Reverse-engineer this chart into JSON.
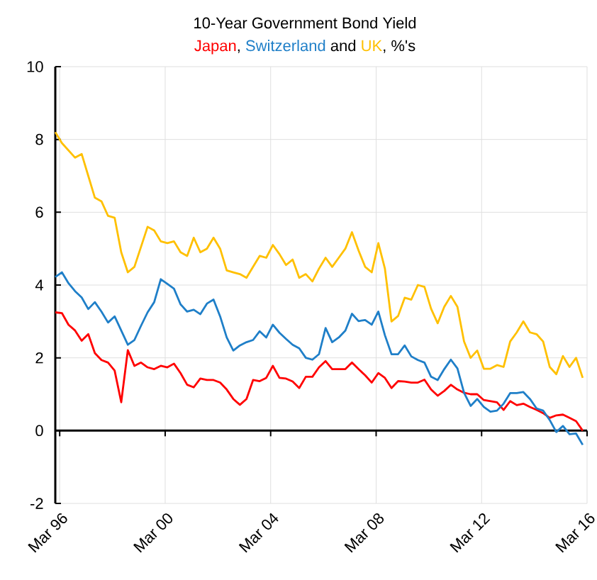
{
  "chart_data": {
    "type": "line",
    "title": "10-Year Government Bond Yield",
    "annotations": [
      ",",
      "and",
      ", %'s"
    ],
    "x": [
      "1996-01",
      "1996-04",
      "1996-07",
      "1996-10",
      "1997-01",
      "1997-04",
      "1997-07",
      "1997-10",
      "1998-01",
      "1998-04",
      "1998-07",
      "1998-10",
      "1999-01",
      "1999-04",
      "1999-07",
      "1999-10",
      "2000-01",
      "2000-04",
      "2000-07",
      "2000-10",
      "2001-01",
      "2001-04",
      "2001-07",
      "2001-10",
      "2002-01",
      "2002-04",
      "2002-07",
      "2002-10",
      "2003-01",
      "2003-04",
      "2003-07",
      "2003-10",
      "2004-01",
      "2004-04",
      "2004-07",
      "2004-10",
      "2005-01",
      "2005-04",
      "2005-07",
      "2005-10",
      "2006-01",
      "2006-04",
      "2006-07",
      "2006-10",
      "2007-01",
      "2007-04",
      "2007-07",
      "2007-10",
      "2008-01",
      "2008-04",
      "2008-07",
      "2008-10",
      "2009-01",
      "2009-04",
      "2009-07",
      "2009-10",
      "2010-01",
      "2010-04",
      "2010-07",
      "2010-10",
      "2011-01",
      "2011-04",
      "2011-07",
      "2011-10",
      "2012-01",
      "2012-04",
      "2012-07",
      "2012-10",
      "2013-01",
      "2013-04",
      "2013-07",
      "2013-10",
      "2014-01",
      "2014-04",
      "2014-07",
      "2014-10",
      "2015-01",
      "2015-04",
      "2015-07",
      "2015-10",
      "2016-01"
    ],
    "series": [
      {
        "name": "Japan",
        "color": "#ff0000",
        "values": [
          3.25,
          3.23,
          2.91,
          2.75,
          2.47,
          2.65,
          2.13,
          1.94,
          1.87,
          1.65,
          0.78,
          2.21,
          1.78,
          1.87,
          1.74,
          1.69,
          1.78,
          1.74,
          1.84,
          1.58,
          1.26,
          1.19,
          1.43,
          1.39,
          1.39,
          1.32,
          1.13,
          0.87,
          0.71,
          0.87,
          1.39,
          1.36,
          1.45,
          1.78,
          1.45,
          1.43,
          1.35,
          1.17,
          1.48,
          1.48,
          1.74,
          1.91,
          1.69,
          1.69,
          1.69,
          1.87,
          1.69,
          1.52,
          1.32,
          1.58,
          1.45,
          1.17,
          1.36,
          1.35,
          1.32,
          1.32,
          1.4,
          1.13,
          0.96,
          1.09,
          1.26,
          1.13,
          1.04,
          1.0,
          1.0,
          0.84,
          0.81,
          0.78,
          0.57,
          0.81,
          0.7,
          0.74,
          0.65,
          0.57,
          0.48,
          0.35,
          0.42,
          0.44,
          0.35,
          0.26,
          0.0
        ]
      },
      {
        "name": "Switzerland",
        "color": "#1f7fc8",
        "values": [
          4.22,
          4.35,
          4.05,
          3.83,
          3.66,
          3.34,
          3.53,
          3.27,
          2.97,
          3.14,
          2.75,
          2.36,
          2.49,
          2.88,
          3.25,
          3.53,
          4.16,
          4.03,
          3.9,
          3.47,
          3.27,
          3.32,
          3.2,
          3.49,
          3.6,
          3.14,
          2.56,
          2.2,
          2.34,
          2.43,
          2.49,
          2.73,
          2.56,
          2.91,
          2.69,
          2.52,
          2.36,
          2.26,
          2.0,
          1.95,
          2.1,
          2.82,
          2.43,
          2.56,
          2.75,
          3.21,
          3.01,
          3.04,
          2.91,
          3.27,
          2.62,
          2.1,
          2.1,
          2.34,
          2.04,
          1.94,
          1.87,
          1.48,
          1.39,
          1.69,
          1.95,
          1.71,
          1.04,
          0.68,
          0.87,
          0.65,
          0.52,
          0.55,
          0.74,
          1.03,
          1.03,
          1.06,
          0.87,
          0.61,
          0.55,
          0.29,
          -0.04,
          0.13,
          -0.1,
          -0.08,
          -0.39
        ]
      },
      {
        "name": "UK",
        "color": "#ffc000",
        "values": [
          8.2,
          7.9,
          7.7,
          7.5,
          7.6,
          7.0,
          6.4,
          6.3,
          5.9,
          5.85,
          4.9,
          4.35,
          4.5,
          5.05,
          5.6,
          5.5,
          5.2,
          5.15,
          5.2,
          4.9,
          4.8,
          5.3,
          4.9,
          5.0,
          5.3,
          5.0,
          4.4,
          4.35,
          4.3,
          4.2,
          4.5,
          4.8,
          4.75,
          5.1,
          4.85,
          4.55,
          4.7,
          4.2,
          4.3,
          4.1,
          4.45,
          4.75,
          4.5,
          4.75,
          5.0,
          5.45,
          4.95,
          4.5,
          4.35,
          5.15,
          4.45,
          3.0,
          3.15,
          3.65,
          3.6,
          4.0,
          3.95,
          3.35,
          2.95,
          3.4,
          3.7,
          3.4,
          2.45,
          2.0,
          2.2,
          1.7,
          1.7,
          1.8,
          1.75,
          2.45,
          2.7,
          3.0,
          2.7,
          2.65,
          2.45,
          1.75,
          1.55,
          2.05,
          1.75,
          2.0,
          1.45
        ]
      }
    ],
    "xlim": [
      "1996-01",
      "2016-03"
    ],
    "xticks": [
      {
        "value": "1996-03",
        "label": "Mar 96"
      },
      {
        "value": "2000-03",
        "label": "Mar 00"
      },
      {
        "value": "2004-03",
        "label": "Mar 04"
      },
      {
        "value": "2008-03",
        "label": "Mar 08"
      },
      {
        "value": "2012-03",
        "label": "Mar 12"
      },
      {
        "value": "2016-03",
        "label": "Mar 16"
      }
    ],
    "ylim": [
      -2,
      10
    ],
    "yticks": [
      -2,
      0,
      2,
      4,
      6,
      8,
      10
    ],
    "grid": true,
    "marker": "none",
    "line_style": "solid"
  }
}
